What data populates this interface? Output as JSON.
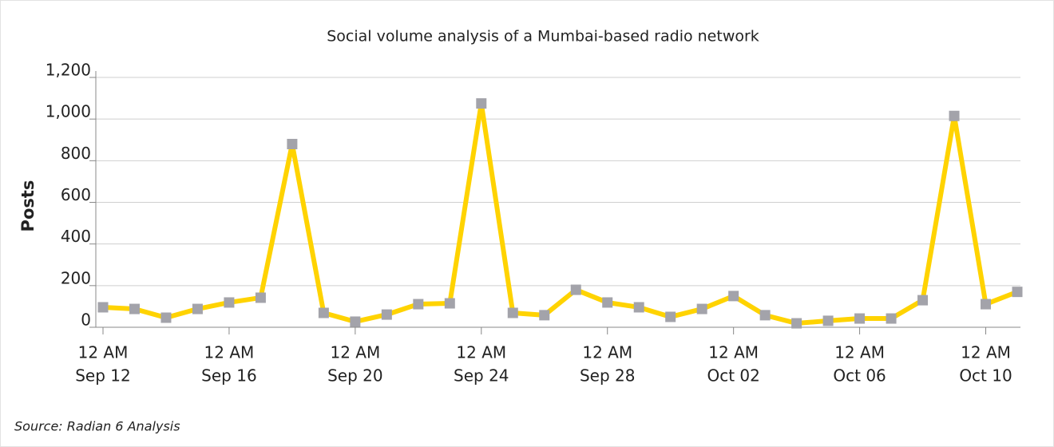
{
  "chart_data": {
    "type": "line",
    "title": "Social volume analysis of a Mumbai-based radio network",
    "y_label": "Posts",
    "source": "Source: Radian 6 Analysis",
    "x": [
      "Sep 12",
      "Sep 13",
      "Sep 14",
      "Sep 15",
      "Sep 16",
      "Sep 17",
      "Sep 18",
      "Sep 19",
      "Sep 20",
      "Sep 21",
      "Sep 22",
      "Sep 23",
      "Sep 24",
      "Sep 25",
      "Sep 26",
      "Sep 27",
      "Sep 28",
      "Sep 29",
      "Sep 30",
      "Oct 01",
      "Oct 02",
      "Oct 03",
      "Oct 04",
      "Oct 05",
      "Oct 06",
      "Oct 07",
      "Oct 08",
      "Oct 09",
      "Oct 10",
      "Oct 11"
    ],
    "series": [
      {
        "name": "Posts",
        "color": "#ffd300",
        "marker_color": "#a3a3aa",
        "values": [
          96,
          88,
          46,
          88,
          119,
          142,
          880,
          69,
          27,
          61,
          111,
          115,
          1075,
          69,
          58,
          180,
          119,
          96,
          50,
          88,
          150,
          58,
          19,
          31,
          42,
          42,
          130,
          1015,
          111,
          170
        ]
      }
    ],
    "xticks": [
      {
        "value": "Sep 12",
        "label": [
          "12 AM",
          "Sep 12"
        ]
      },
      {
        "value": "Sep 16",
        "label": [
          "12 AM",
          "Sep 16"
        ]
      },
      {
        "value": "Sep 20",
        "label": [
          "12 AM",
          "Sep 20"
        ]
      },
      {
        "value": "Sep 24",
        "label": [
          "12 AM",
          "Sep 24"
        ]
      },
      {
        "value": "Sep 28",
        "label": [
          "12 AM",
          "Sep 28"
        ]
      },
      {
        "value": "Oct 02",
        "label": [
          "12 AM",
          "Oct 02"
        ]
      },
      {
        "value": "Oct 06",
        "label": [
          "12 AM",
          "Oct 06"
        ]
      },
      {
        "value": "Oct 10",
        "label": [
          "12 AM",
          "Oct 10"
        ]
      }
    ],
    "ylim": [
      0,
      1200
    ],
    "yticks": [
      0,
      200,
      400,
      600,
      800,
      {
        "value": 1000,
        "label": "1,000"
      },
      {
        "value": 1200,
        "label": "1,200"
      }
    ],
    "grid": true
  }
}
